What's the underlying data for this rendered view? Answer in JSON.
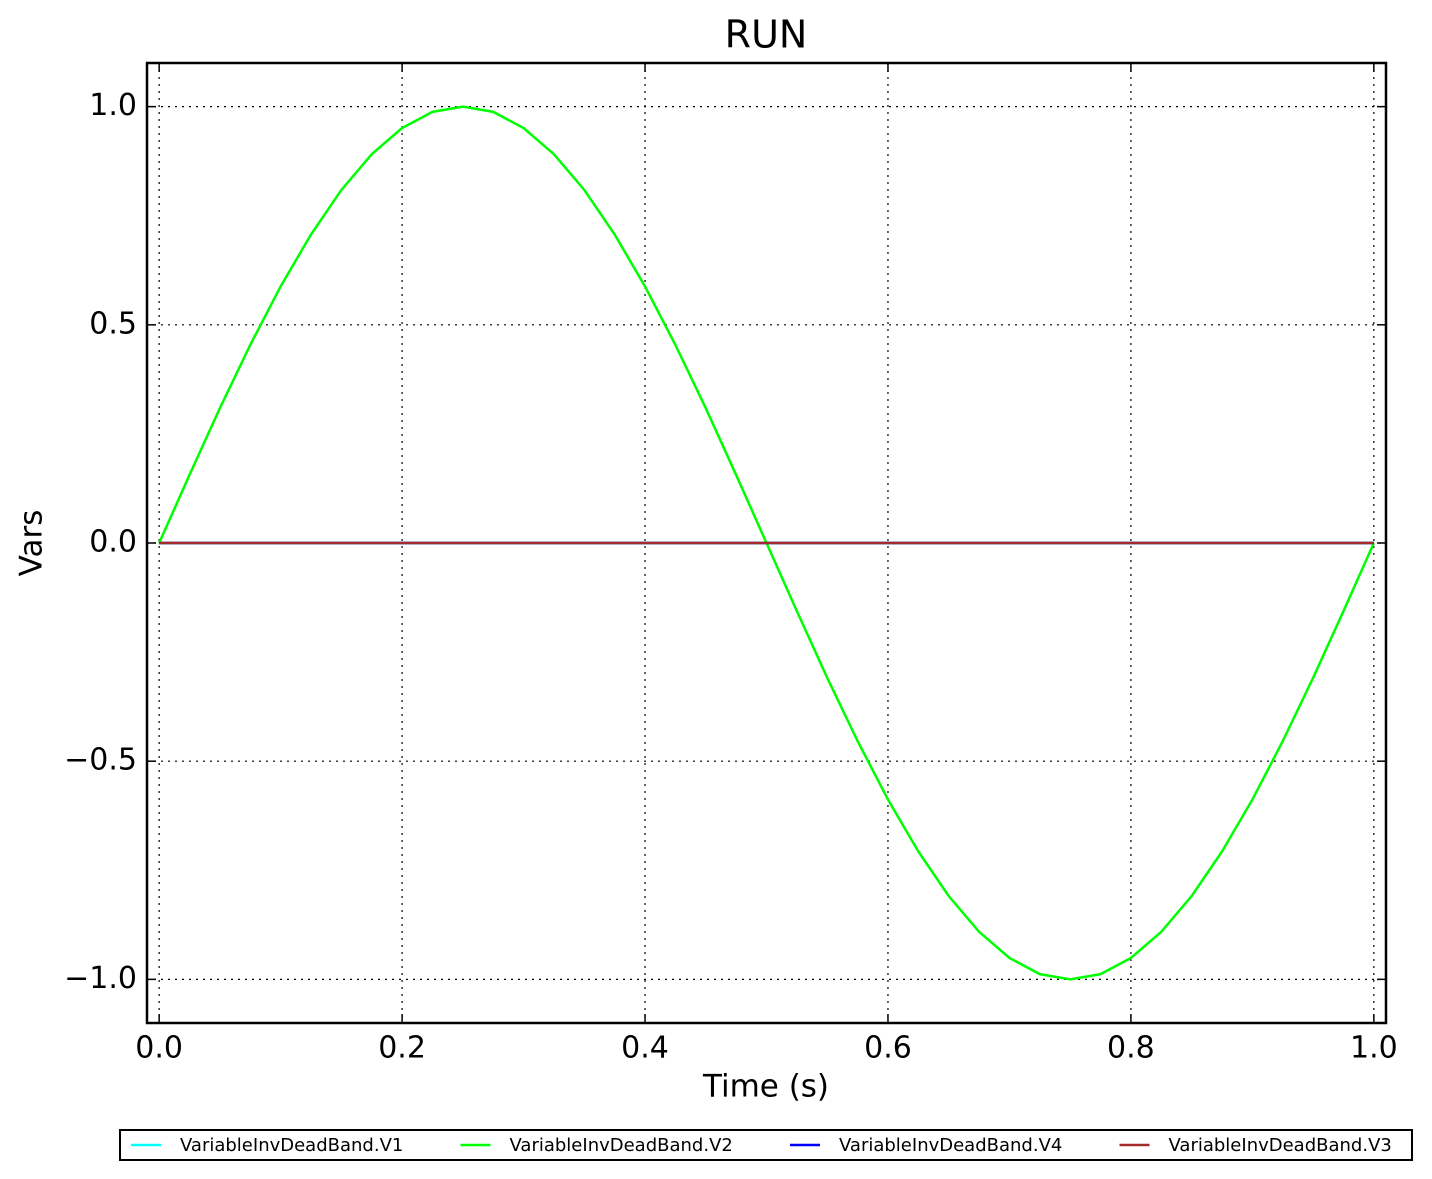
{
  "chart_data": {
    "type": "line",
    "title": "RUN",
    "x_label": "Time (s)",
    "y_label": "Vars",
    "x": [
      0,
      0.025,
      0.05,
      0.075,
      0.1,
      0.125,
      0.15,
      0.175,
      0.2,
      0.225,
      0.25,
      0.275,
      0.3,
      0.325,
      0.35,
      0.375,
      0.4,
      0.425,
      0.45,
      0.475,
      0.5,
      0.525,
      0.55,
      0.575,
      0.6,
      0.625,
      0.65,
      0.675,
      0.7,
      0.725,
      0.75,
      0.775,
      0.8,
      0.825,
      0.85,
      0.875,
      0.9,
      0.925,
      0.95,
      0.975,
      1
    ],
    "series": [
      {
        "name": "VariableInvDeadBand.V1",
        "color": "#00ffff",
        "values": [
          0,
          0,
          0,
          0,
          0,
          0,
          0,
          0,
          0,
          0,
          0,
          0,
          0,
          0,
          0,
          0,
          0,
          0,
          0,
          0,
          0,
          0,
          0,
          0,
          0,
          0,
          0,
          0,
          0,
          0,
          0,
          0,
          0,
          0,
          0,
          0,
          0,
          0,
          0,
          0,
          0
        ]
      },
      {
        "name": "VariableInvDeadBand.V2",
        "color": "#00ff00",
        "values": [
          0,
          0.156,
          0.309,
          0.454,
          0.588,
          0.707,
          0.809,
          0.891,
          0.951,
          0.988,
          1,
          0.988,
          0.951,
          0.891,
          0.809,
          0.707,
          0.588,
          0.454,
          0.309,
          0.156,
          0,
          -0.156,
          -0.309,
          -0.454,
          -0.588,
          -0.707,
          -0.809,
          -0.891,
          -0.951,
          -0.988,
          -1,
          -0.988,
          -0.951,
          -0.891,
          -0.809,
          -0.707,
          -0.588,
          -0.454,
          -0.309,
          -0.156,
          0
        ]
      },
      {
        "name": "VariableInvDeadBand.V4",
        "color": "#0000ff",
        "values": [
          0,
          0,
          0,
          0,
          0,
          0,
          0,
          0,
          0,
          0,
          0,
          0,
          0,
          0,
          0,
          0,
          0,
          0,
          0,
          0,
          0,
          0,
          0,
          0,
          0,
          0,
          0,
          0,
          0,
          0,
          0,
          0,
          0,
          0,
          0,
          0,
          0,
          0,
          0,
          0,
          0
        ]
      },
      {
        "name": "VariableInvDeadBand.V3",
        "color": "#a52a2a",
        "values": [
          0,
          0,
          0,
          0,
          0,
          0,
          0,
          0,
          0,
          0,
          0,
          0,
          0,
          0,
          0,
          0,
          0,
          0,
          0,
          0,
          0,
          0,
          0,
          0,
          0,
          0,
          0,
          0,
          0,
          0,
          0,
          0,
          0,
          0,
          0,
          0,
          0,
          0,
          0,
          0,
          0
        ]
      }
    ],
    "xlim": [
      -0.01,
      1.01
    ],
    "ylim": [
      -1.1,
      1.1
    ],
    "xticks": [
      {
        "value": 0,
        "label": "0.0"
      },
      {
        "value": 0.2,
        "label": "0.2"
      },
      {
        "value": 0.4,
        "label": "0.4"
      },
      {
        "value": 0.6,
        "label": "0.6"
      },
      {
        "value": 0.8,
        "label": "0.8"
      },
      {
        "value": 1,
        "label": "1.0"
      }
    ],
    "yticks": [
      {
        "value": -1,
        "label": "−1.0"
      },
      {
        "value": -0.5,
        "label": "−0.5"
      },
      {
        "value": 0,
        "label": "0.0"
      },
      {
        "value": 0.5,
        "label": "0.5"
      },
      {
        "value": 1,
        "label": "1.0"
      }
    ],
    "grid": true,
    "legend": "bottom"
  }
}
